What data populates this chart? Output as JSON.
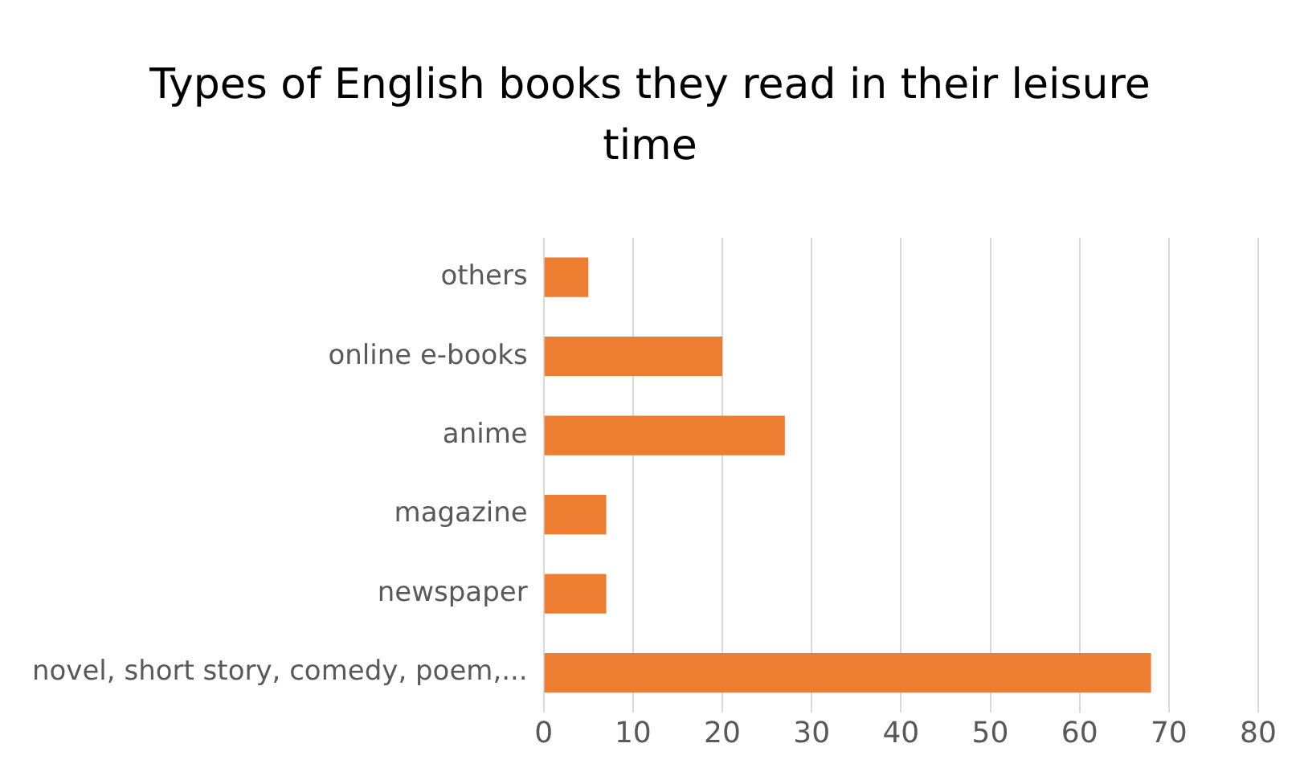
{
  "chart_data": {
    "type": "bar",
    "orientation": "horizontal",
    "title": "Types of English books they read in their leisure time",
    "categories": [
      "others",
      "online e-books",
      "anime",
      "magazine",
      "newspaper",
      "novel, short story, comedy, poem,..."
    ],
    "values": [
      5,
      20,
      27,
      7,
      7,
      68
    ],
    "color": "#ed7d31",
    "xlim": [
      0,
      80
    ],
    "xticks": [
      0,
      10,
      20,
      30,
      40,
      50,
      60,
      70,
      80
    ],
    "grid": "x",
    "legend": false
  }
}
